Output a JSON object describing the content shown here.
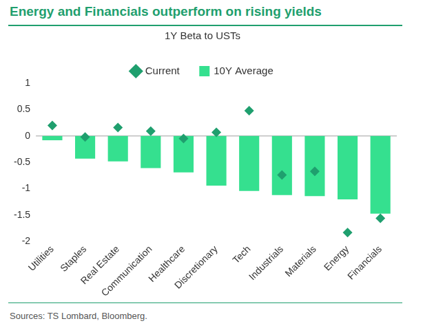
{
  "chart_data": {
    "type": "bar",
    "title": "Energy and Financials outperform on rising yields",
    "subtitle": "1Y Beta to USTs",
    "source": "Sources: TS Lombard, Bloomberg.",
    "categories": [
      "Utilities",
      "Staples",
      "Real Estate",
      "Communication",
      "Healthcare",
      "Discretionary",
      "Tech",
      "Industrials",
      "Materials",
      "Energy",
      "Financials"
    ],
    "series": [
      {
        "name": "10Y Average",
        "type": "bar",
        "color": "#35e08f",
        "values": [
          -0.08,
          -0.43,
          -0.48,
          -0.61,
          -0.69,
          -0.94,
          -1.04,
          -1.12,
          -1.14,
          -1.2,
          -1.47
        ]
      },
      {
        "name": "Current",
        "type": "scatter",
        "marker": "diamond",
        "color": "#1f9f6e",
        "values": [
          0.2,
          -0.02,
          0.16,
          0.09,
          -0.05,
          0.07,
          0.48,
          -0.74,
          -0.67,
          -1.83,
          -1.56
        ]
      }
    ],
    "ylim": [
      -2,
      1
    ],
    "yticks": [
      -2,
      -1.5,
      -1,
      -0.5,
      0,
      0.5,
      1
    ],
    "grid": false,
    "legend": "top"
  }
}
